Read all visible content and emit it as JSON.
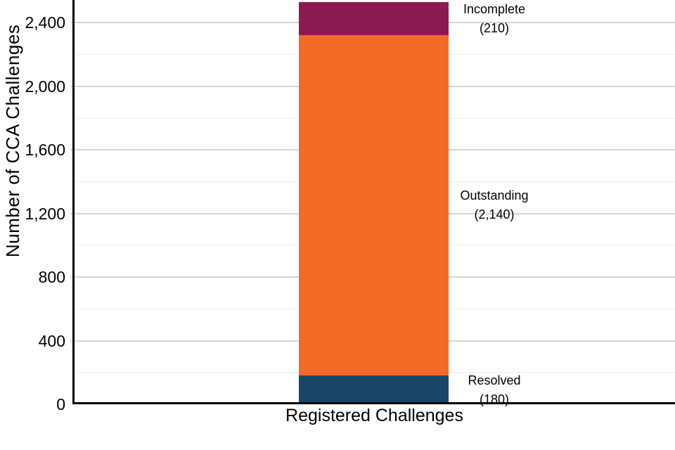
{
  "chart_data": {
    "type": "bar",
    "stacked": true,
    "title": "",
    "xlabel": "Registered Challenges",
    "ylabel": "Number of CCA Challenges",
    "categories": [
      "Registered Challenges"
    ],
    "series": [
      {
        "name": "Resolved",
        "value": 180,
        "label": "Resolved",
        "value_label": "(180)",
        "color": "#1B4668"
      },
      {
        "name": "Outstanding",
        "value": 2140,
        "label": "Outstanding",
        "value_label": "(2,140)",
        "color": "#F26B24"
      },
      {
        "name": "Incomplete",
        "value": 210,
        "label": "Incomplete",
        "value_label": "(210)",
        "color": "#8B1A51"
      }
    ],
    "total": 2530,
    "y_ticks": [
      {
        "label": "0",
        "value": 0
      },
      {
        "label": "400",
        "value": 400
      },
      {
        "label": "800",
        "value": 800
      },
      {
        "label": "1,200",
        "value": 1200
      },
      {
        "label": "1,600",
        "value": 1600
      },
      {
        "label": "2,000",
        "value": 2000
      },
      {
        "label": "2,400",
        "value": 2400
      }
    ],
    "minor_grid_step": 200,
    "ylim": [
      0,
      2543
    ],
    "grid": "horizontal",
    "legend": "none",
    "colors": {
      "axis": "#000000",
      "major_grid": "#d4d4d4",
      "minor_grid": "#ebebeb",
      "background": "#ffffff"
    }
  }
}
